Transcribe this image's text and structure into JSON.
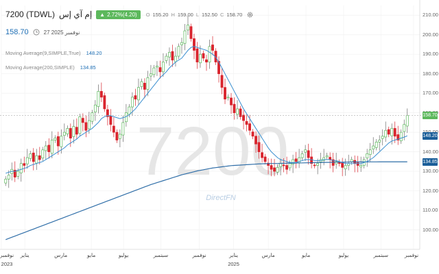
{
  "header": {
    "symbol": "7200 (TDWL)",
    "name": "إم آي إس",
    "change": "2.72%(4.20)",
    "ohlc": [
      {
        "k": "O",
        "v": "155.20"
      },
      {
        "k": "H",
        "v": "159.00"
      },
      {
        "k": "L",
        "v": "152.50"
      },
      {
        "k": "C",
        "v": "158.70"
      }
    ],
    "last_price": "158.70",
    "date": "27 نوفمبر 2025"
  },
  "indicators": [
    {
      "label": "Moving Average(9,SIMPLE,True)",
      "value": "148.20",
      "color": "#3a8fd0"
    },
    {
      "label": "Moving Average(200,SIMPLE)",
      "value": "134.85",
      "color": "#2f6ea8"
    }
  ],
  "watermark": "7200",
  "brand": "DirectFN",
  "price_tags": {
    "last": "158.70",
    "ma9": "148.20",
    "ma200": "134.85"
  },
  "colors": {
    "up": "#5cb85c",
    "down": "#d9252e",
    "ma9": "#3a8fd0",
    "ma200": "#2f6ea8",
    "tag_last": "#5cb85c",
    "tag_ma9": "#1a5e99",
    "tag_ma200": "#1a5e99"
  },
  "chart_data": {
    "type": "candlestick",
    "y_ticks": [
      100,
      110,
      120,
      130,
      140,
      150,
      160,
      170,
      180,
      190,
      200,
      210
    ],
    "ylim": [
      90,
      215
    ],
    "x_labels": [
      {
        "label": "نوفمبر",
        "sub": "2023",
        "pos": 0.0
      },
      {
        "label": "يناير",
        "sub": "",
        "pos": 0.056
      },
      {
        "label": "مارس",
        "sub": "",
        "pos": 0.142
      },
      {
        "label": "مايو",
        "sub": "",
        "pos": 0.215
      },
      {
        "label": "يوليو",
        "sub": "",
        "pos": 0.292
      },
      {
        "label": "سبتمبر",
        "sub": "",
        "pos": 0.381
      },
      {
        "label": "نوفمبر",
        "sub": "",
        "pos": 0.473
      },
      {
        "label": "يناير",
        "sub": "2025",
        "pos": 0.555
      },
      {
        "label": "مارس",
        "sub": "",
        "pos": 0.638
      },
      {
        "label": "مايو",
        "sub": "",
        "pos": 0.728
      },
      {
        "label": "يوليو",
        "sub": "",
        "pos": 0.818
      },
      {
        "label": "سبتمبر",
        "sub": "",
        "pos": 0.907
      },
      {
        "label": "نوفمبر",
        "sub": "",
        "pos": 0.985
      }
    ],
    "close": [
      126,
      128,
      131,
      127,
      130,
      134,
      133,
      137,
      139,
      135,
      138,
      136,
      141,
      143,
      140,
      146,
      147,
      143,
      148,
      150,
      152,
      147,
      153,
      149,
      158,
      155,
      151,
      156,
      160,
      164,
      171,
      168,
      162,
      158,
      154,
      150,
      146,
      149,
      155,
      160,
      163,
      168,
      167,
      173,
      176,
      172,
      178,
      180,
      183,
      184,
      181,
      186,
      189,
      191,
      187,
      189,
      194,
      196,
      202,
      205,
      198,
      192,
      186,
      190,
      188,
      186,
      194,
      192,
      186,
      180,
      173,
      167,
      168,
      164,
      160,
      162,
      158,
      156,
      154,
      151,
      148,
      144,
      140,
      137,
      135,
      133,
      131,
      130,
      132,
      134,
      133,
      131,
      134,
      136,
      135,
      137,
      139,
      141,
      137,
      134,
      133,
      134,
      136,
      137,
      138,
      136,
      133,
      135,
      134,
      132,
      133,
      134,
      136,
      134,
      133,
      133,
      136,
      139,
      141,
      143,
      145,
      146,
      148,
      151,
      149,
      152,
      148,
      146,
      150,
      154,
      158.7
    ],
    "ma9": [
      129,
      129.5,
      130,
      130,
      130.5,
      131,
      131.5,
      132,
      133,
      133.5,
      134,
      134.5,
      135,
      136,
      137,
      138,
      139,
      140,
      141,
      142,
      143.5,
      144.5,
      145.5,
      146.5,
      148,
      149,
      150,
      151,
      152,
      153.5,
      155,
      157,
      158,
      158.5,
      158.5,
      158,
      157.5,
      157,
      157.5,
      158,
      159,
      160.5,
      162,
      164,
      166,
      168,
      170,
      172,
      174,
      176,
      178,
      179.5,
      181,
      183,
      184.5,
      186,
      187,
      188,
      190,
      192,
      193.5,
      194,
      193.5,
      193,
      192.5,
      192,
      191,
      190,
      188.5,
      186,
      183,
      180,
      177,
      174,
      171,
      168,
      165,
      162,
      159.5,
      157,
      154.5,
      152,
      149.5,
      147,
      144.5,
      142,
      140,
      138.5,
      137,
      136,
      135.5,
      135,
      134.5,
      134.5,
      134.5,
      135,
      135.5,
      136,
      136,
      136,
      135.5,
      135.5,
      135.5,
      136,
      136,
      136,
      135.5,
      135.5,
      135,
      134.5,
      134,
      134,
      134,
      134,
      134,
      134,
      134.5,
      135,
      136,
      137,
      138.5,
      140,
      141.5,
      143,
      144.5,
      145.5,
      146,
      146.5,
      147,
      147.5,
      148.2
    ],
    "ma200": [
      95,
      95.6,
      96.2,
      96.8,
      97.4,
      98,
      98.6,
      99.2,
      99.8,
      100.4,
      101,
      101.6,
      102.2,
      102.8,
      103.4,
      104,
      104.6,
      105.2,
      105.8,
      106.4,
      107,
      107.6,
      108.2,
      108.8,
      109.4,
      110,
      110.6,
      111.2,
      111.8,
      112.4,
      113,
      113.6,
      114.2,
      114.8,
      115.4,
      116,
      116.6,
      117.2,
      117.8,
      118.4,
      119,
      119.6,
      120.2,
      120.8,
      121.4,
      122,
      122.6,
      123.2,
      123.7,
      124.2,
      124.7,
      125.2,
      125.7,
      126.2,
      126.7,
      127.2,
      127.7,
      128.2,
      128.6,
      129,
      129.4,
      129.8,
      130.2,
      130.5,
      130.8,
      131.1,
      131.4,
      131.7,
      131.9,
      132.1,
      132.3,
      132.5,
      132.7,
      132.9,
      133,
      133.1,
      133.2,
      133.3,
      133.4,
      133.5,
      133.6,
      133.7,
      133.8,
      133.85,
      133.9,
      133.95,
      134,
      134,
      134,
      134.05,
      134.1,
      134.15,
      134.2,
      134.2,
      134.25,
      134.3,
      134.3,
      134.35,
      134.4,
      134.4,
      134.45,
      134.5,
      134.5,
      134.55,
      134.6,
      134.6,
      134.65,
      134.7,
      134.7,
      134.7,
      134.75,
      134.75,
      134.8,
      134.8,
      134.8,
      134.8,
      134.8,
      134.82,
      134.83,
      134.84,
      134.84,
      134.85,
      134.85,
      134.85,
      134.85,
      134.85,
      134.85,
      134.85,
      134.85,
      134.85,
      134.85
    ]
  }
}
